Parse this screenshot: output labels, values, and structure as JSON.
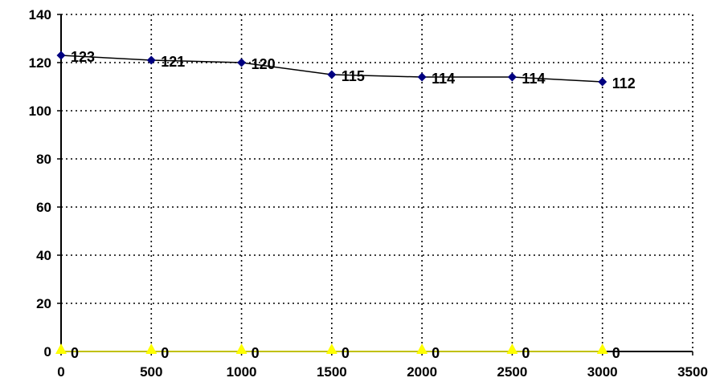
{
  "chart_data": {
    "type": "line",
    "title": "",
    "xlabel": "",
    "ylabel": "",
    "xlim": [
      0,
      3500
    ],
    "ylim": [
      0,
      140
    ],
    "x_ticks": [
      0,
      500,
      1000,
      1500,
      2000,
      2500,
      3000,
      3500
    ],
    "y_ticks": [
      0,
      20,
      40,
      60,
      80,
      100,
      120,
      140
    ],
    "grid": true,
    "grid_style": "dotted",
    "legend": "none",
    "x": [
      0,
      500,
      1000,
      1500,
      2000,
      2500,
      3000
    ],
    "series": [
      {
        "values": [
          123,
          121,
          120,
          115,
          114,
          114,
          112
        ],
        "labels": [
          "123",
          "121",
          "120",
          "115",
          "114",
          "114",
          "112"
        ],
        "marker": "diamond",
        "color": "#000080",
        "line_color": "#000000"
      },
      {
        "values": [
          0,
          0,
          0,
          0,
          0,
          0,
          0
        ],
        "labels": [
          "0",
          "0",
          "0",
          "0",
          "0",
          "0",
          "0"
        ],
        "marker": "triangle",
        "color": "#ffff00",
        "line_color": "#ffff00"
      }
    ]
  }
}
